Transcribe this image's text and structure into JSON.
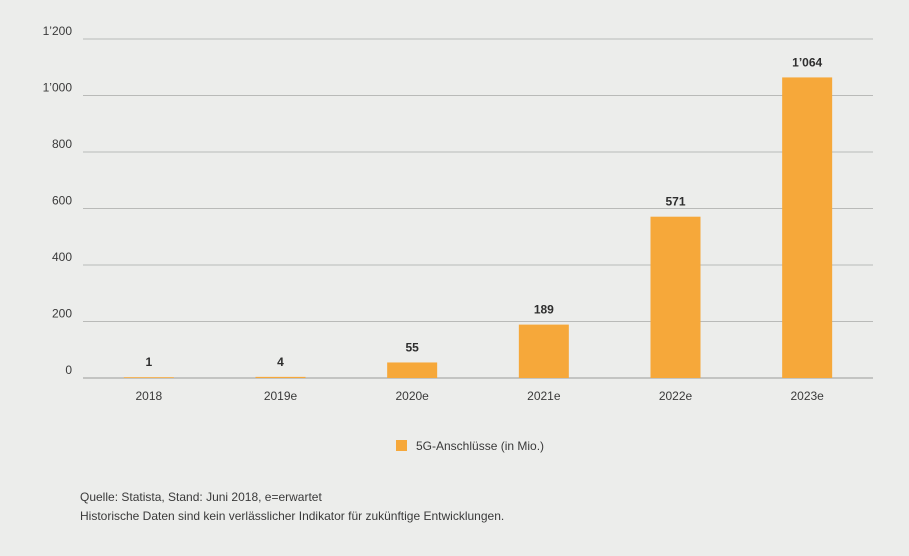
{
  "chart_data": {
    "type": "bar",
    "categories": [
      "2018",
      "2019e",
      "2020e",
      "2021e",
      "2022e",
      "2023e"
    ],
    "series": [
      {
        "name": "5G-Anschlüsse (in Mio.)",
        "values": [
          1,
          4,
          55,
          189,
          571,
          1064
        ],
        "color": "#f6a83a"
      }
    ],
    "data_labels": [
      "1",
      "4",
      "55",
      "189",
      "571",
      "1’064"
    ],
    "ylim": [
      0,
      1200
    ],
    "yticks": [
      0,
      200,
      400,
      600,
      800,
      1000,
      1200
    ],
    "ytick_labels": [
      "0",
      "200",
      "400",
      "600",
      "800",
      "1’000",
      "1’200"
    ],
    "grid": true,
    "legend_position": "bottom-center"
  },
  "footnotes": {
    "source": "Quelle: Statista, Stand: Juni 2018, e=erwartet",
    "disclaimer": "Historische Daten sind kein verlässlicher Indikator für zukünftige Entwicklungen."
  }
}
